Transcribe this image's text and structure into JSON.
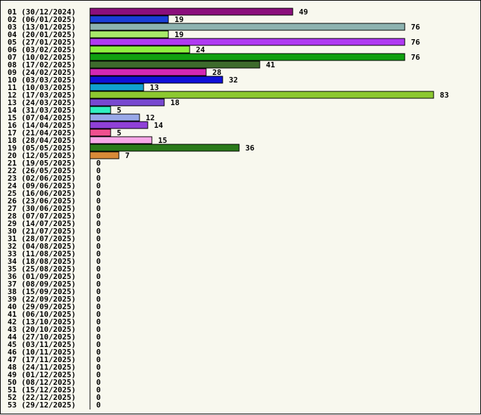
{
  "chart_data": {
    "type": "bar",
    "orientation": "horizontal",
    "categories": [
      "01 (30/12/2024)",
      "02 (06/01/2025)",
      "03 (13/01/2025)",
      "04 (20/01/2025)",
      "05 (27/01/2025)",
      "06 (03/02/2025)",
      "07 (10/02/2025)",
      "08 (17/02/2025)",
      "09 (24/02/2025)",
      "10 (03/03/2025)",
      "11 (10/03/2025)",
      "12 (17/03/2025)",
      "13 (24/03/2025)",
      "14 (31/03/2025)",
      "15 (07/04/2025)",
      "16 (14/04/2025)",
      "17 (21/04/2025)",
      "18 (28/04/2025)",
      "19 (05/05/2025)",
      "20 (12/05/2025)",
      "21 (19/05/2025)",
      "22 (26/05/2025)",
      "23 (02/06/2025)",
      "24 (09/06/2025)",
      "25 (16/06/2025)",
      "26 (23/06/2025)",
      "27 (30/06/2025)",
      "28 (07/07/2025)",
      "29 (14/07/2025)",
      "30 (21/07/2025)",
      "31 (28/07/2025)",
      "32 (04/08/2025)",
      "33 (11/08/2025)",
      "34 (18/08/2025)",
      "35 (25/08/2025)",
      "36 (01/09/2025)",
      "37 (08/09/2025)",
      "38 (15/09/2025)",
      "39 (22/09/2025)",
      "40 (29/09/2025)",
      "41 (06/10/2025)",
      "42 (13/10/2025)",
      "43 (20/10/2025)",
      "44 (27/10/2025)",
      "45 (03/11/2025)",
      "46 (10/11/2025)",
      "47 (17/11/2025)",
      "48 (24/11/2025)",
      "49 (01/12/2025)",
      "50 (08/12/2025)",
      "51 (15/12/2025)",
      "52 (22/12/2025)",
      "53 (29/12/2025)"
    ],
    "values": [
      49,
      19,
      76,
      19,
      76,
      24,
      76,
      41,
      28,
      32,
      13,
      83,
      18,
      5,
      12,
      14,
      5,
      15,
      36,
      7,
      0,
      0,
      0,
      0,
      0,
      0,
      0,
      0,
      0,
      0,
      0,
      0,
      0,
      0,
      0,
      0,
      0,
      0,
      0,
      0,
      0,
      0,
      0,
      0,
      0,
      0,
      0,
      0,
      0,
      0,
      0,
      0,
      0
    ],
    "colors": [
      "#8b0f7c",
      "#1a3fd8",
      "#8db3b0",
      "#a8e86a",
      "#b03af2",
      "#8ef040",
      "#10a010",
      "#3d6b2c",
      "#d428b4",
      "#1010d8",
      "#10a0d0",
      "#8cc830",
      "#7848d0",
      "#30f0c0",
      "#98a8e8",
      "#9040d8",
      "#f05090",
      "#f8a8e8",
      "#2a7a1a",
      "#d88a38"
    ],
    "xlim": [
      0,
      83
    ],
    "title": "",
    "xlabel": "",
    "ylabel": "",
    "grid": false,
    "legend": "none",
    "value_labels": true
  }
}
